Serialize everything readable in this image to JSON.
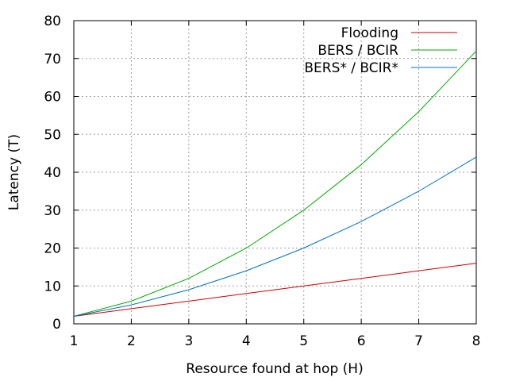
{
  "chart_data": {
    "type": "line",
    "xlabel": "Resource found at hop (H)",
    "ylabel": "Latency (T)",
    "xlim": [
      1,
      8
    ],
    "ylim": [
      0,
      80
    ],
    "xticks": [
      1,
      2,
      3,
      4,
      5,
      6,
      7,
      8
    ],
    "yticks": [
      0,
      10,
      20,
      30,
      40,
      50,
      60,
      70,
      80
    ],
    "grid": true,
    "legend_position": "top-right",
    "x": [
      1,
      2,
      3,
      4,
      5,
      6,
      7,
      8
    ],
    "series": [
      {
        "name": "Flooding",
        "color": "#cc0000",
        "values": [
          2,
          4,
          6,
          8,
          10,
          12,
          14,
          16
        ]
      },
      {
        "name": "BERS / BCIR",
        "color": "#00aa00",
        "values": [
          2,
          6,
          12,
          20,
          30,
          42,
          56,
          72
        ]
      },
      {
        "name": "BERS* / BCIR*",
        "color": "#0070c0",
        "values": [
          2,
          5,
          9,
          14,
          20,
          27,
          35,
          44
        ]
      }
    ]
  }
}
